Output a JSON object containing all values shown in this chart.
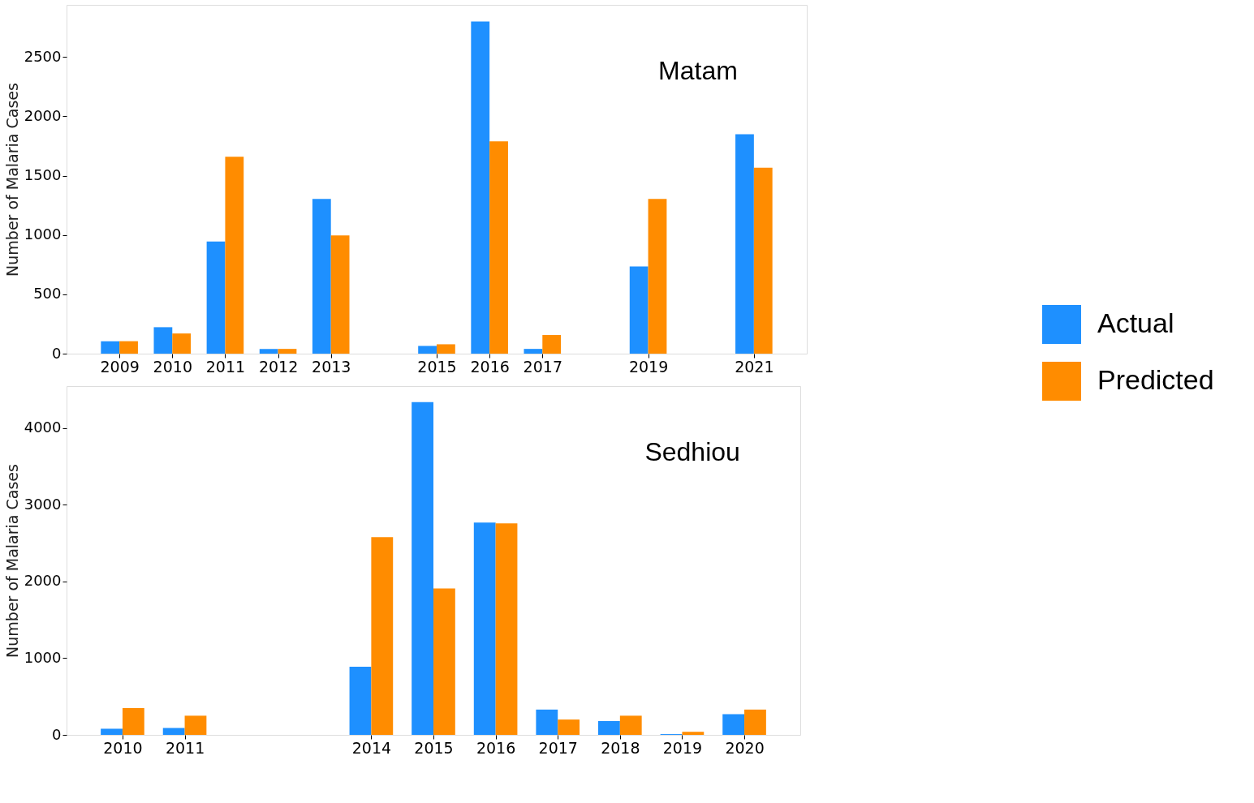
{
  "chart_data": [
    {
      "type": "bar",
      "title": "Matam",
      "ylabel": "Number of Malaria Cases",
      "x": [
        2009,
        2010,
        2011,
        2012,
        2013,
        2015,
        2016,
        2017,
        2019,
        2021
      ],
      "series": [
        {
          "name": "Actual",
          "color": "#1e90ff",
          "values": [
            105,
            223,
            945,
            40,
            1305,
            65,
            2800,
            40,
            735,
            1850
          ]
        },
        {
          "name": "Predicted",
          "color": "#ff8c00",
          "values": [
            105,
            170,
            1660,
            40,
            997,
            79,
            1790,
            157,
            1305,
            1568
          ]
        }
      ],
      "xlim": [
        2008,
        2022
      ],
      "xticks": [
        2009,
        2010,
        2011,
        2012,
        2013,
        2015,
        2016,
        2017,
        2019,
        2021
      ],
      "ylim": [
        0,
        2940
      ],
      "yticks": [
        0,
        500,
        1000,
        1500,
        2000,
        2500
      ],
      "grid": false,
      "legend": "right"
    },
    {
      "type": "bar",
      "title": "Sedhiou",
      "ylabel": "Number of Malaria Cases",
      "x": [
        2010,
        2011,
        2014,
        2015,
        2016,
        2017,
        2018,
        2019,
        2020
      ],
      "series": [
        {
          "name": "Actual",
          "color": "#1e90ff",
          "values": [
            80,
            90,
            890,
            4340,
            2770,
            330,
            180,
            10,
            270
          ]
        },
        {
          "name": "Predicted",
          "color": "#ff8c00",
          "values": [
            350,
            250,
            2580,
            1910,
            2760,
            200,
            250,
            40,
            330
          ]
        }
      ],
      "xlim": [
        2009.1,
        2020.9
      ],
      "xticks": [
        2010,
        2011,
        2014,
        2015,
        2016,
        2017,
        2018,
        2019,
        2020
      ],
      "ylim": [
        0,
        4550
      ],
      "yticks": [
        0,
        1000,
        2000,
        3000,
        4000
      ],
      "grid": false,
      "legend": "right"
    }
  ]
}
